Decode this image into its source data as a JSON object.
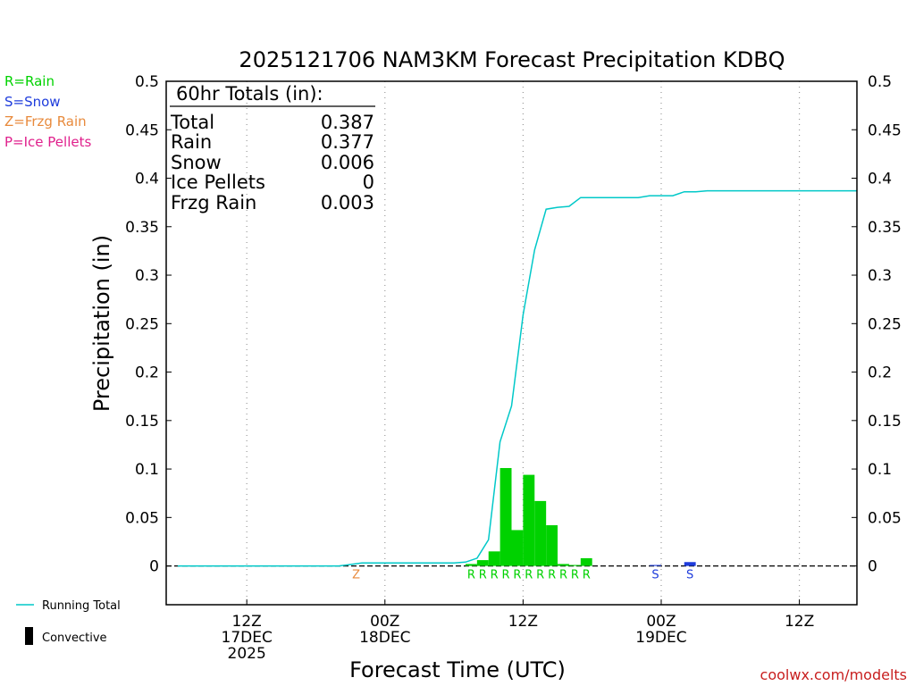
{
  "chart_data": {
    "type": "bar",
    "title": "2025121706 NAM3KM Forecast Precipitation KDBQ",
    "xlabel": "Forecast Time (UTC)",
    "ylabel": "Precipitation (in)",
    "ylim": [
      -0.04,
      0.5
    ],
    "y_ticks": [
      0,
      0.05,
      0.1,
      0.15,
      0.2,
      0.25,
      0.3,
      0.35,
      0.4,
      0.45,
      0.5
    ],
    "y_tick_labels": [
      "0",
      "0.05",
      "0.1",
      "0.15",
      "0.2",
      "0.25",
      "0.3",
      "0.35",
      "0.4",
      "0.45",
      "0.5"
    ],
    "x_unit": "forecast hour",
    "xlim": [
      -1,
      59
    ],
    "x_ticks": [
      {
        "hour": 6,
        "lines": [
          "12Z",
          "17DEC",
          "2025"
        ]
      },
      {
        "hour": 18,
        "lines": [
          "00Z",
          "18DEC"
        ]
      },
      {
        "hour": 30,
        "lines": [
          "12Z"
        ]
      },
      {
        "hour": 42,
        "lines": [
          "00Z",
          "19DEC"
        ]
      },
      {
        "hour": 54,
        "lines": [
          "12Z"
        ]
      }
    ],
    "series": [
      {
        "name": "Rain",
        "color": "#00d200",
        "type": "bar",
        "bars": [
          {
            "hour": 25.5,
            "value": 0.002
          },
          {
            "hour": 26.5,
            "value": 0.006
          },
          {
            "hour": 27.5,
            "value": 0.015
          },
          {
            "hour": 28.5,
            "value": 0.101
          },
          {
            "hour": 29.5,
            "value": 0.037
          },
          {
            "hour": 30.5,
            "value": 0.094
          },
          {
            "hour": 31.5,
            "value": 0.067
          },
          {
            "hour": 32.5,
            "value": 0.042
          },
          {
            "hour": 33.5,
            "value": 0.002
          },
          {
            "hour": 34.5,
            "value": 0.001
          },
          {
            "hour": 35.5,
            "value": 0.008
          }
        ]
      },
      {
        "name": "Snow",
        "color": "#1e3cdc",
        "type": "bar",
        "bars": [
          {
            "hour": 41.5,
            "value": 0.001
          },
          {
            "hour": 44.5,
            "value": 0.004
          }
        ]
      },
      {
        "name": "Running Total",
        "color": "#00c8c8",
        "type": "line",
        "x": [
          0,
          1,
          2,
          3,
          4,
          5,
          6,
          7,
          8,
          9,
          10,
          11,
          12,
          13,
          14,
          15,
          16,
          17,
          18,
          19,
          20,
          21,
          22,
          23,
          24,
          25,
          26,
          27,
          28,
          29,
          30,
          31,
          32,
          33,
          34,
          35,
          36,
          37,
          38,
          39,
          40,
          41,
          42,
          43,
          44,
          45,
          46,
          47,
          48,
          49,
          50,
          51,
          52,
          53,
          54,
          55,
          56,
          57,
          58,
          59
        ],
        "y": [
          0,
          0,
          0,
          0,
          0,
          0,
          0,
          0,
          0,
          0,
          0,
          0,
          0,
          0,
          0,
          0.0015,
          0.003,
          0.003,
          0.003,
          0.003,
          0.003,
          0.003,
          0.003,
          0.003,
          0.003,
          0.004,
          0.008,
          0.027,
          0.128,
          0.165,
          0.259,
          0.326,
          0.368,
          0.37,
          0.371,
          0.38,
          0.38,
          0.38,
          0.38,
          0.38,
          0.38,
          0.382,
          0.382,
          0.382,
          0.386,
          0.386,
          0.387,
          0.387,
          0.387,
          0.387,
          0.387,
          0.387,
          0.387,
          0.387,
          0.387,
          0.387,
          0.387,
          0.387,
          0.387,
          0.387
        ]
      }
    ],
    "precip_type_markers": [
      {
        "hour": 15.5,
        "label": "Z",
        "color": "#e88a3c"
      },
      {
        "hour": 25.5,
        "label": "R",
        "color": "#00d200"
      },
      {
        "hour": 26.5,
        "label": "R",
        "color": "#00d200"
      },
      {
        "hour": 27.5,
        "label": "R",
        "color": "#00d200"
      },
      {
        "hour": 28.5,
        "label": "R",
        "color": "#00d200"
      },
      {
        "hour": 29.5,
        "label": "R",
        "color": "#00d200"
      },
      {
        "hour": 30.5,
        "label": "R",
        "color": "#00d200"
      },
      {
        "hour": 31.5,
        "label": "R",
        "color": "#00d200"
      },
      {
        "hour": 32.5,
        "label": "R",
        "color": "#00d200"
      },
      {
        "hour": 33.5,
        "label": "R",
        "color": "#00d200"
      },
      {
        "hour": 34.5,
        "label": "R",
        "color": "#00d200"
      },
      {
        "hour": 35.5,
        "label": "R",
        "color": "#00d200"
      },
      {
        "hour": 41.5,
        "label": "S",
        "color": "#1e3cdc"
      },
      {
        "hour": 44.5,
        "label": "S",
        "color": "#1e3cdc"
      }
    ],
    "totals_box": {
      "header": "60hr Totals (in):",
      "rows": [
        {
          "label": "Total",
          "value": "0.387"
        },
        {
          "label": "Rain",
          "value": "0.377"
        },
        {
          "label": "Snow",
          "value": "0.006"
        },
        {
          "label": "Ice Pellets",
          "value": "0"
        },
        {
          "label": "Frzg Rain",
          "value": "0.003"
        }
      ]
    },
    "type_legend": [
      {
        "label": "R=Rain",
        "color": "#00d200"
      },
      {
        "label": "S=Snow",
        "color": "#1e3cdc"
      },
      {
        "label": "Z=Frzg Rain",
        "color": "#e88a3c"
      },
      {
        "label": "P=Ice Pellets",
        "color": "#e0208c"
      }
    ],
    "bottom_legend": [
      {
        "label": "Running Total",
        "symbol": "line",
        "color": "#00c8c8"
      },
      {
        "label": "Convective",
        "symbol": "bar",
        "color": "#000000"
      }
    ]
  },
  "watermark": "coolwx.com/modelts",
  "colors": {
    "watermark": "#c81e1e",
    "grid": "#999999",
    "axis": "#000000"
  }
}
